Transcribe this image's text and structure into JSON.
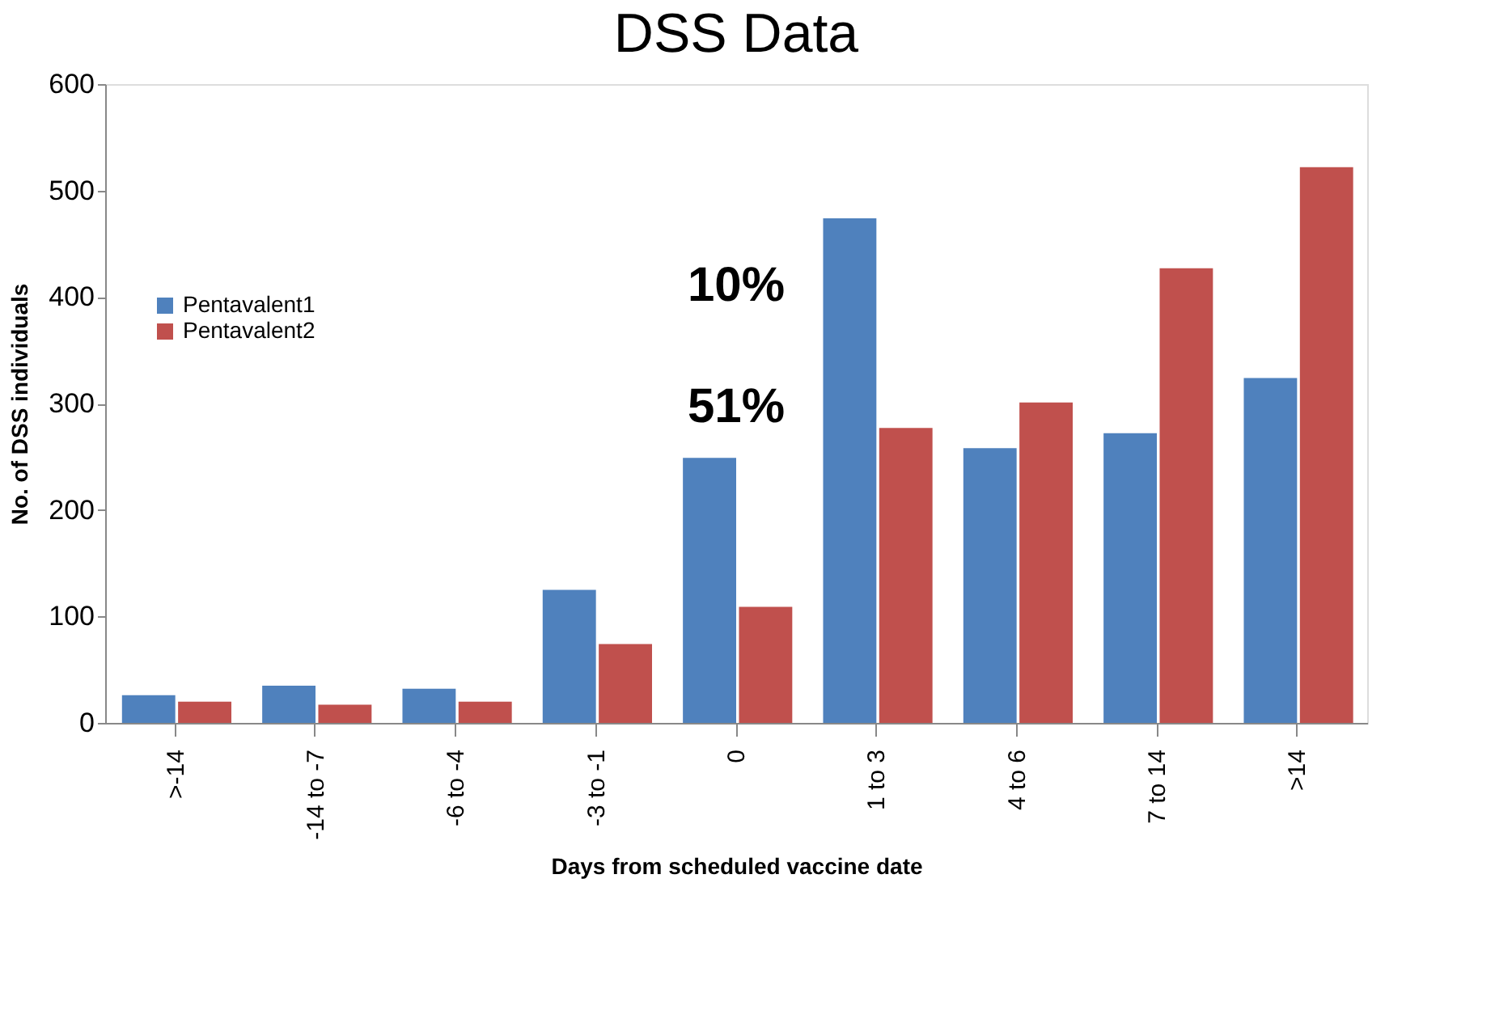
{
  "chart_data": {
    "type": "bar",
    "title": "DSS Data",
    "xlabel": "Days from scheduled vaccine date",
    "ylabel": "No. of DSS individuals",
    "categories": [
      ">-14",
      "-14 to -7",
      "-6 to -4",
      "-3 to -1",
      "0",
      "1 to 3",
      "4 to 6",
      "7 to 14",
      ">14"
    ],
    "series": [
      {
        "name": "Pentavalent1",
        "color": "#4f81bd",
        "values": [
          26,
          35,
          32,
          125,
          249,
          474,
          258,
          272,
          324
        ]
      },
      {
        "name": "Pentavalent2",
        "color": "#c0504d",
        "values": [
          20,
          17,
          20,
          74,
          109,
          277,
          301,
          427,
          522
        ]
      }
    ],
    "ylim": [
      0,
      600
    ],
    "yticks": [
      0,
      100,
      200,
      300,
      400,
      500,
      600
    ],
    "grid": false,
    "legend": "left",
    "annotations": [
      "10%",
      "51%"
    ]
  }
}
